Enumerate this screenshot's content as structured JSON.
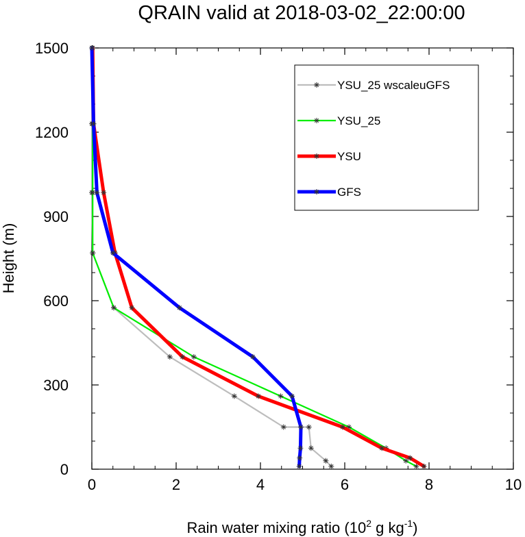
{
  "chart_data": {
    "type": "line",
    "title": "QRAIN valid at 2018-03-02_22:00:00",
    "xlabel": {
      "prefix": "Rain water mixing ratio (10",
      "exp1": "2",
      "middle": " g kg",
      "exp2": "-1",
      "suffix": ")"
    },
    "ylabel": "Height (m)",
    "xlim": [
      0,
      10
    ],
    "ylim": [
      0,
      1500
    ],
    "x_ticks": [
      "0",
      "2",
      "4",
      "6",
      "8",
      "10"
    ],
    "y_ticks": [
      "0",
      "300",
      "600",
      "900",
      "1200",
      "1500"
    ],
    "grid": false,
    "legend_position": "top-right",
    "marker": "asterisk",
    "series": [
      {
        "name": "YSU_25 wscaleuGFS",
        "color": "#bdbdbd",
        "width": "thin",
        "x": [
          5.68,
          5.55,
          5.2,
          5.15,
          4.55,
          3.38,
          1.85,
          0.52,
          0.02,
          0.0,
          0.0,
          0.0
        ],
        "y": [
          10,
          30,
          75,
          150,
          150,
          260,
          400,
          575,
          770,
          985,
          1230,
          1500
        ]
      },
      {
        "name": "YSU_25",
        "color": "#00ee00",
        "width": "thin",
        "x": [
          7.7,
          7.45,
          6.98,
          6.1,
          4.48,
          2.42,
          0.52,
          0.02,
          0.02,
          0.02,
          0.02
        ],
        "y": [
          10,
          30,
          75,
          150,
          260,
          400,
          575,
          770,
          985,
          1230,
          1500
        ]
      },
      {
        "name": "YSU",
        "color": "#ff0000",
        "width": "thick",
        "x": [
          7.88,
          7.55,
          6.88,
          5.95,
          3.95,
          2.15,
          0.95,
          0.55,
          0.28,
          0.04,
          0.02
        ],
        "y": [
          10,
          40,
          75,
          150,
          260,
          400,
          575,
          770,
          985,
          1230,
          1500
        ]
      },
      {
        "name": "GFS",
        "color": "#0000ff",
        "width": "thick",
        "x": [
          4.92,
          4.93,
          4.95,
          4.96,
          4.75,
          3.82,
          2.08,
          0.5,
          0.12,
          0.04,
          0.0
        ],
        "y": [
          10,
          40,
          75,
          150,
          260,
          400,
          575,
          770,
          985,
          1230,
          1500
        ]
      }
    ]
  }
}
